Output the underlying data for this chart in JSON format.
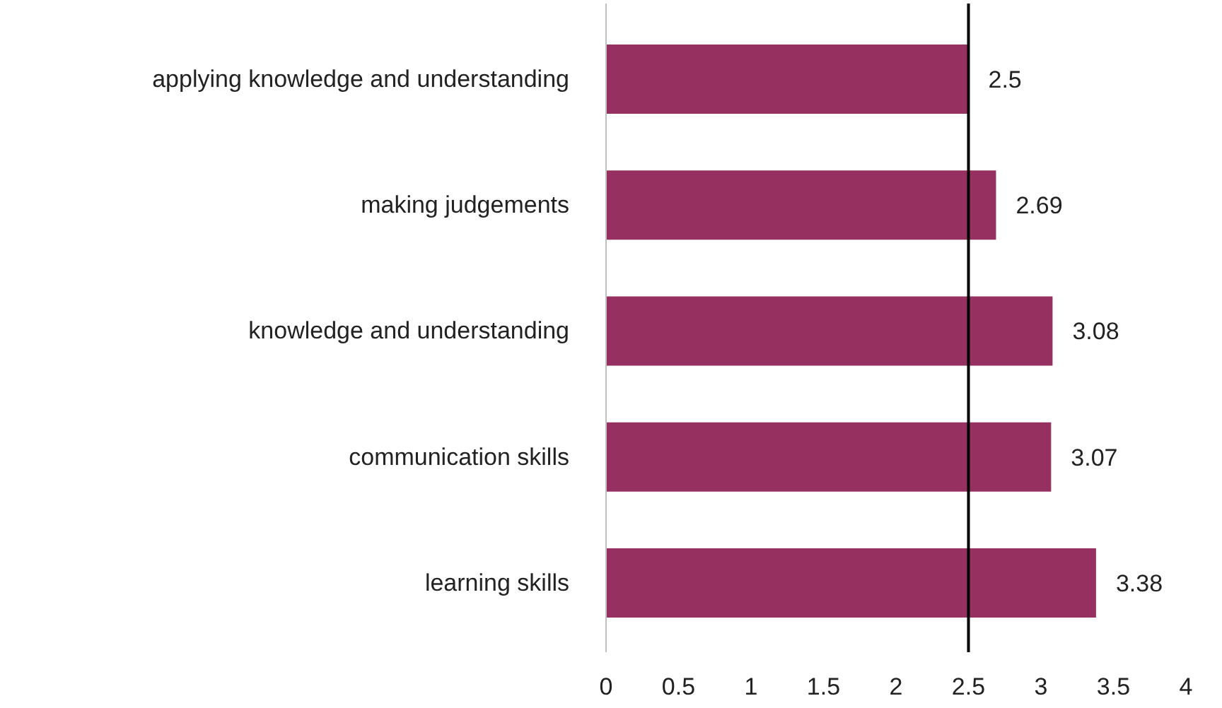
{
  "chart_data": {
    "type": "bar",
    "orientation": "horizontal",
    "categories": [
      "applying knowledge and understanding",
      "making judgements",
      "knowledge and understanding",
      "communication skills",
      "learning skills"
    ],
    "values": [
      2.5,
      2.69,
      3.08,
      3.07,
      3.38
    ],
    "color": "#963060",
    "xlim": [
      0,
      4
    ],
    "xticks": [
      0,
      0.5,
      1,
      1.5,
      2,
      2.5,
      3,
      3.5,
      4
    ],
    "grid": false,
    "data_labels": true,
    "ref_lines": [
      {
        "axis": "x",
        "value": 2.5,
        "label": null,
        "color": "#000000"
      }
    ]
  }
}
